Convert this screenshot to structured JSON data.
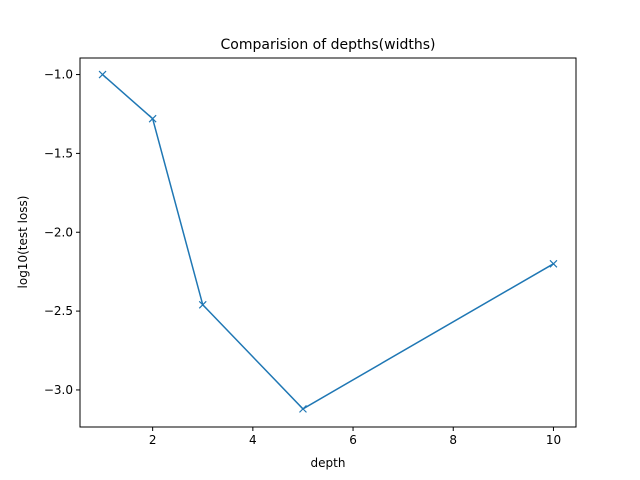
{
  "chart_data": {
    "type": "line",
    "title": "Comparision of depths(widths)",
    "xlabel": "depth",
    "ylabel": "log10(test loss)",
    "xlim": [
      0.55,
      10.45
    ],
    "ylim": [
      -3.235,
      -0.895
    ],
    "xticks": [
      2,
      4,
      6,
      8,
      10
    ],
    "yticks": [
      -1.0,
      -1.5,
      -2.0,
      -2.5,
      -3.0
    ],
    "xtick_labels": [
      "2",
      "4",
      "6",
      "8",
      "10"
    ],
    "ytick_labels": [
      "−1.0",
      "−1.5",
      "−2.0",
      "−2.5",
      "−3.0"
    ],
    "grid": false,
    "series": [
      {
        "color": "#1f77b4",
        "marker": "x",
        "x": [
          1,
          2,
          3,
          5,
          10
        ],
        "y": [
          -1.0,
          -1.28,
          -2.46,
          -3.12,
          -2.2
        ]
      }
    ]
  }
}
